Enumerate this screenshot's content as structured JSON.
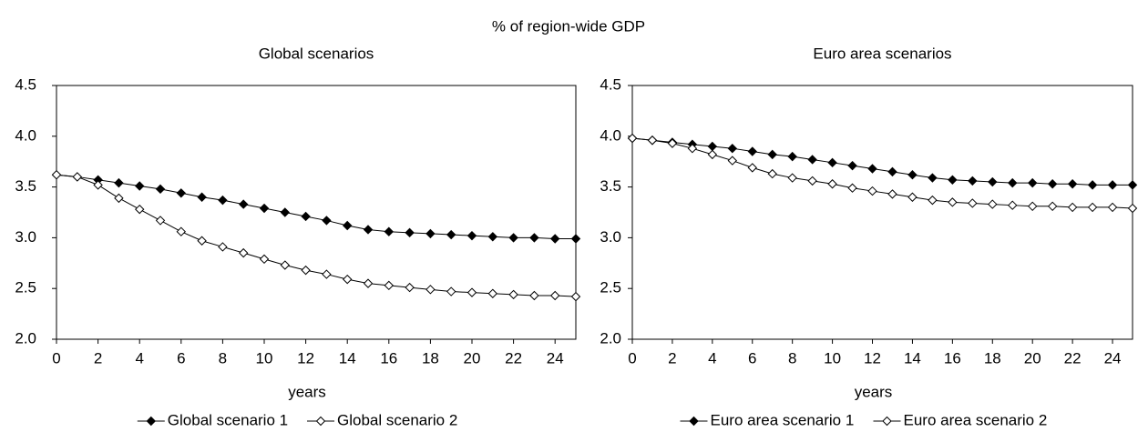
{
  "title": "% of region-wide GDP",
  "chart_data": [
    {
      "type": "line",
      "title": "Global scenarios",
      "x_label": "years",
      "x": [
        0,
        1,
        2,
        3,
        4,
        5,
        6,
        7,
        8,
        9,
        10,
        11,
        12,
        13,
        14,
        15,
        16,
        17,
        18,
        19,
        20,
        21,
        22,
        23,
        24,
        25
      ],
      "xlim": [
        0,
        25
      ],
      "xticks": [
        0,
        2,
        4,
        6,
        8,
        10,
        12,
        14,
        16,
        18,
        20,
        22,
        24
      ],
      "ylim": [
        2.0,
        4.5
      ],
      "yticks": [
        {
          "value": 2,
          "label": "2.0"
        },
        2.5,
        {
          "value": 3,
          "label": "3.0"
        },
        3.5,
        {
          "value": 4,
          "label": "4.0"
        },
        4.5
      ],
      "series": [
        {
          "name": "Global scenario 1",
          "color": "#000000",
          "marker": "filled",
          "values": [
            3.62,
            3.6,
            3.57,
            3.54,
            3.51,
            3.48,
            3.44,
            3.4,
            3.37,
            3.33,
            3.29,
            3.25,
            3.21,
            3.17,
            3.12,
            3.08,
            3.06,
            3.05,
            3.04,
            3.03,
            3.02,
            3.01,
            3.0,
            3.0,
            2.99,
            2.99
          ]
        },
        {
          "name": "Global scenario 2",
          "color": "#000000",
          "marker": "open",
          "values": [
            3.62,
            3.6,
            3.52,
            3.39,
            3.28,
            3.17,
            3.06,
            2.97,
            2.91,
            2.85,
            2.79,
            2.73,
            2.68,
            2.64,
            2.59,
            2.55,
            2.53,
            2.51,
            2.49,
            2.47,
            2.46,
            2.45,
            2.44,
            2.43,
            2.43,
            2.42
          ]
        }
      ]
    },
    {
      "type": "line",
      "title": "Euro area scenarios",
      "x_label": "years",
      "x": [
        0,
        1,
        2,
        3,
        4,
        5,
        6,
        7,
        8,
        9,
        10,
        11,
        12,
        13,
        14,
        15,
        16,
        17,
        18,
        19,
        20,
        21,
        22,
        23,
        24,
        25
      ],
      "xlim": [
        0,
        25
      ],
      "xticks": [
        0,
        2,
        4,
        6,
        8,
        10,
        12,
        14,
        16,
        18,
        20,
        22,
        24
      ],
      "ylim": [
        2.0,
        4.5
      ],
      "yticks": [
        {
          "value": 2,
          "label": "2.0"
        },
        2.5,
        {
          "value": 3,
          "label": "3.0"
        },
        3.5,
        {
          "value": 4,
          "label": "4.0"
        },
        4.5
      ],
      "series": [
        {
          "name": "Euro area scenario 1",
          "color": "#000000",
          "marker": "filled",
          "values": [
            3.98,
            3.96,
            3.94,
            3.92,
            3.9,
            3.88,
            3.85,
            3.82,
            3.8,
            3.77,
            3.74,
            3.71,
            3.68,
            3.65,
            3.62,
            3.59,
            3.57,
            3.56,
            3.55,
            3.54,
            3.54,
            3.53,
            3.53,
            3.52,
            3.52,
            3.52
          ]
        },
        {
          "name": "Euro area scenario 2",
          "color": "#000000",
          "marker": "open",
          "values": [
            3.98,
            3.96,
            3.93,
            3.88,
            3.82,
            3.76,
            3.69,
            3.63,
            3.59,
            3.56,
            3.53,
            3.49,
            3.46,
            3.43,
            3.4,
            3.37,
            3.35,
            3.34,
            3.33,
            3.32,
            3.31,
            3.31,
            3.3,
            3.3,
            3.3,
            3.29
          ]
        }
      ]
    }
  ]
}
